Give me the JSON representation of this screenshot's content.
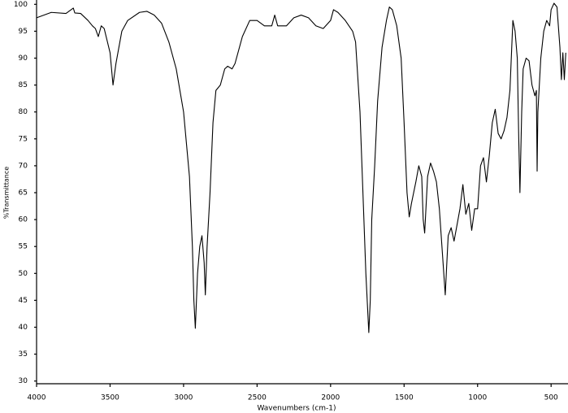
{
  "chart_data": {
    "type": "line",
    "x_label": "Wavenumbers (cm-1)",
    "y_label": "%Transmittance",
    "color": "#000000",
    "xlim": [
      4000,
      385
    ],
    "ylim": [
      29.5,
      100.5
    ],
    "xticks": [
      4000,
      3500,
      3000,
      2500,
      2000,
      1500,
      1000,
      500
    ],
    "yticks": [
      100,
      95,
      90,
      85,
      80,
      75,
      70,
      65,
      60,
      55,
      50,
      45,
      40,
      35,
      30
    ],
    "x": [
      4000,
      3900,
      3800,
      3750,
      3740,
      3700,
      3650,
      3620,
      3600,
      3580,
      3560,
      3540,
      3500,
      3480,
      3460,
      3420,
      3380,
      3300,
      3250,
      3200,
      3150,
      3100,
      3050,
      3000,
      2960,
      2940,
      2930,
      2920,
      2905,
      2890,
      2875,
      2860,
      2852,
      2840,
      2820,
      2800,
      2780,
      2750,
      2720,
      2700,
      2670,
      2650,
      2600,
      2550,
      2500,
      2450,
      2400,
      2380,
      2360,
      2300,
      2250,
      2200,
      2150,
      2100,
      2050,
      2000,
      1980,
      1950,
      1900,
      1850,
      1830,
      1800,
      1780,
      1760,
      1740,
      1730,
      1720,
      1700,
      1680,
      1650,
      1620,
      1600,
      1580,
      1550,
      1520,
      1500,
      1480,
      1465,
      1450,
      1420,
      1400,
      1380,
      1370,
      1360,
      1340,
      1320,
      1300,
      1280,
      1260,
      1240,
      1220,
      1200,
      1180,
      1160,
      1140,
      1120,
      1100,
      1080,
      1060,
      1040,
      1020,
      1000,
      980,
      960,
      940,
      920,
      900,
      880,
      860,
      840,
      820,
      800,
      780,
      760,
      745,
      730,
      720,
      712,
      700,
      690,
      670,
      650,
      630,
      610,
      600,
      595,
      590,
      570,
      550,
      530,
      510,
      500,
      480,
      460,
      440,
      430,
      420,
      410,
      400
    ],
    "values": [
      97.5,
      98.5,
      98.3,
      99.3,
      98.4,
      98.3,
      97,
      96,
      95.5,
      94,
      96,
      95.5,
      91,
      85,
      89,
      95,
      97,
      98.5,
      98.7,
      98,
      96.5,
      93,
      88,
      80,
      68,
      55,
      45,
      39.8,
      50,
      55,
      57,
      52,
      46,
      55,
      65,
      78,
      84,
      85,
      88,
      88.5,
      88,
      89,
      94,
      97,
      97,
      96,
      96,
      98,
      96,
      96,
      97.5,
      98,
      97.5,
      96,
      95.5,
      97,
      99,
      98.5,
      97,
      95,
      93,
      80,
      65,
      50,
      39,
      45,
      60,
      70,
      82,
      92,
      97,
      99.5,
      99,
      96,
      90,
      78,
      65,
      60.5,
      63,
      67,
      70,
      68,
      60,
      57.5,
      68,
      70.5,
      69,
      67,
      62,
      54,
      46,
      57,
      58.5,
      56,
      59,
      62,
      66.5,
      61,
      63,
      58,
      62,
      62,
      70,
      71.5,
      67,
      72,
      78,
      80.5,
      76,
      75,
      76.5,
      79,
      84,
      97,
      95,
      90,
      75,
      65,
      80,
      88,
      90,
      89.5,
      85,
      83,
      84,
      69,
      80,
      90,
      95,
      97,
      96,
      99,
      100.2,
      99.5,
      92,
      86,
      91,
      86,
      91
    ]
  }
}
